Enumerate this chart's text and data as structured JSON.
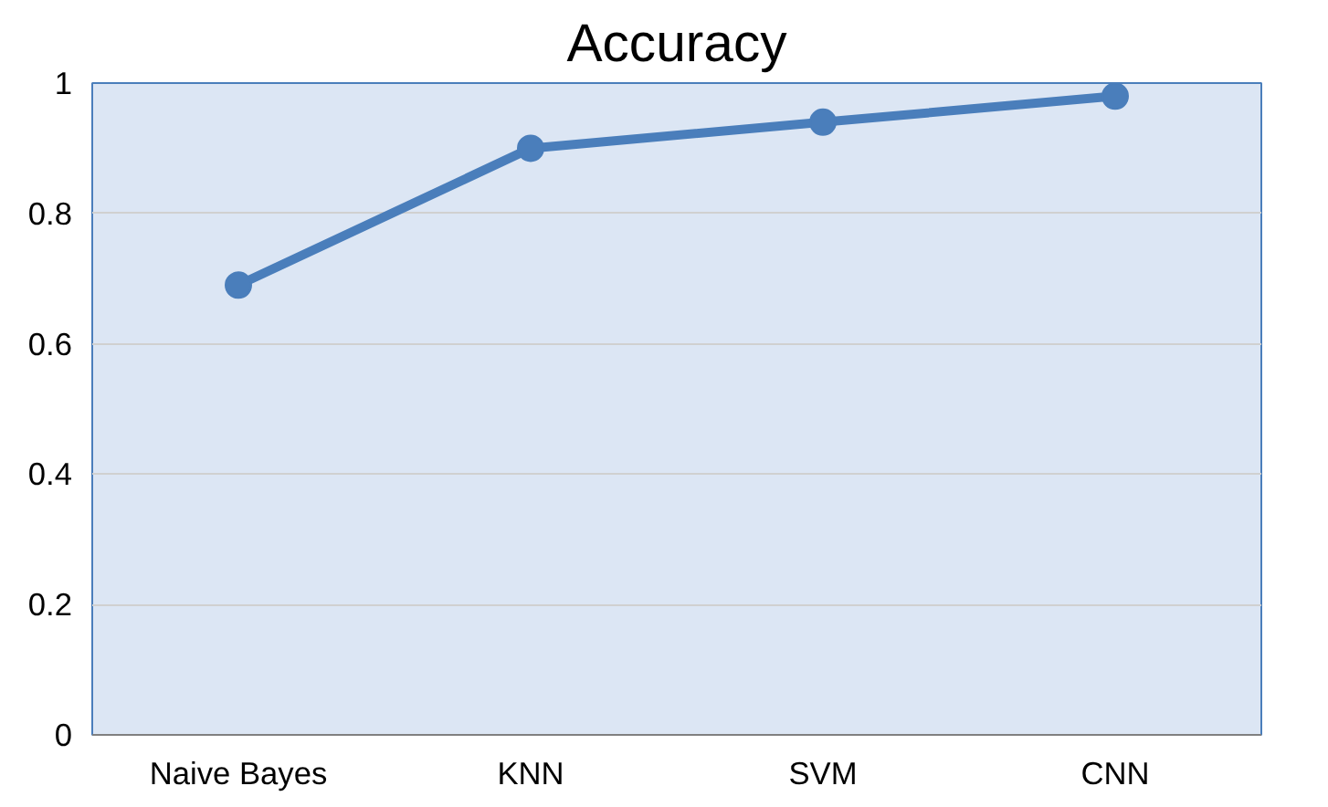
{
  "chart_data": {
    "type": "line",
    "title": "Accuracy",
    "categories": [
      "Naive Bayes",
      "KNN",
      "SVM",
      "CNN"
    ],
    "series": [
      {
        "color": "#4a7ebb",
        "values": [
          0.69,
          0.9,
          0.94,
          0.98
        ]
      }
    ],
    "ylim": [
      0,
      1
    ],
    "yticks": [
      0,
      0.2,
      0.4,
      0.6,
      0.8,
      1
    ],
    "grid": "y",
    "marker": "circle",
    "line_style": "solid"
  }
}
